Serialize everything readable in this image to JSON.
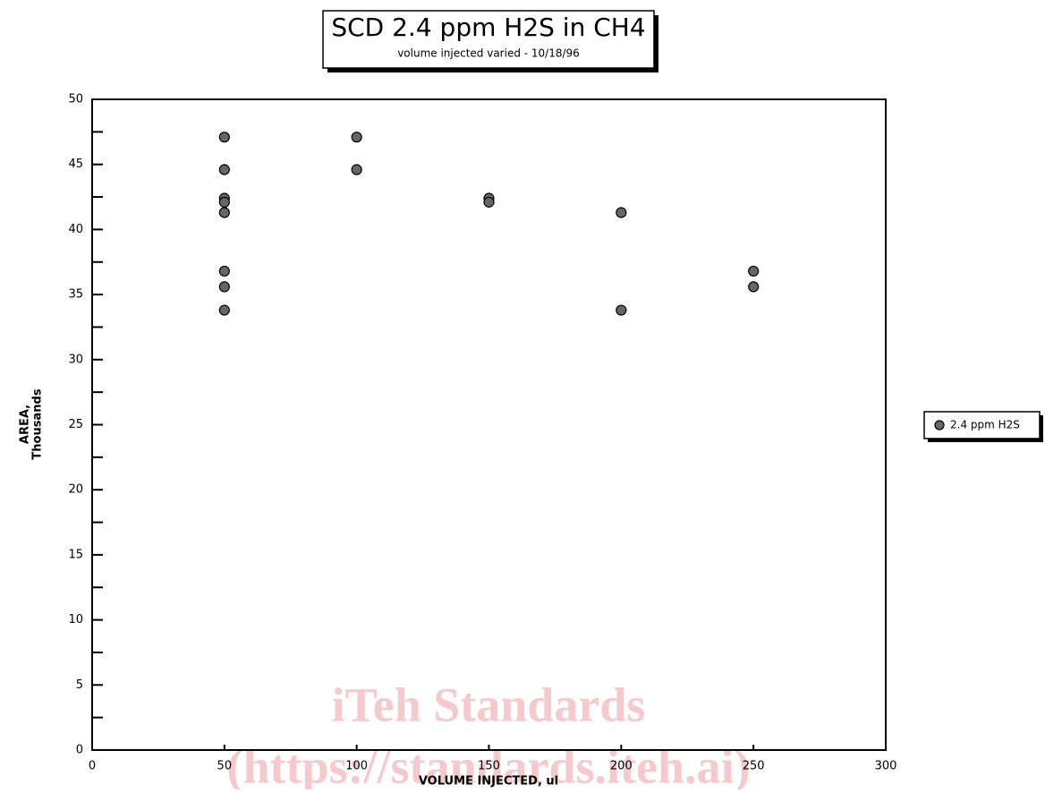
{
  "chart_data": {
    "type": "scatter",
    "title": "SCD 2.4 ppm H2S in CH4",
    "subtitle": "volume injected varied - 10/18/96",
    "x_label": "VOLUME INJECTED, ul",
    "y_label": [
      "AREA,",
      "Thousands"
    ],
    "series": [
      {
        "name": "2.4 ppm H2S",
        "color": "#666666",
        "x": [
          50,
          50,
          50,
          50,
          50,
          50,
          50,
          50,
          100,
          100,
          150,
          150,
          200,
          200,
          250,
          250
        ],
        "values": [
          47.1,
          44.6,
          42.4,
          42.1,
          41.3,
          36.8,
          35.6,
          33.8,
          47.1,
          44.6,
          42.4,
          42.1,
          41.3,
          33.8,
          36.8,
          35.6
        ]
      }
    ],
    "xlim": [
      0,
      300
    ],
    "xticks": [
      0,
      50,
      100,
      150,
      200,
      250,
      300
    ],
    "ylim": [
      0,
      50
    ],
    "yticks": [
      0,
      5,
      10,
      15,
      20,
      25,
      30,
      35,
      40,
      45,
      50
    ],
    "yminorticks": [
      2.5,
      7.5,
      12.5,
      17.5,
      22.5,
      27.5,
      32.5,
      37.5,
      42.5,
      47.5
    ],
    "grid": false,
    "legend": "right",
    "watermark": [
      "iTeh Standards",
      "(https://standards.iteh.ai)"
    ]
  }
}
